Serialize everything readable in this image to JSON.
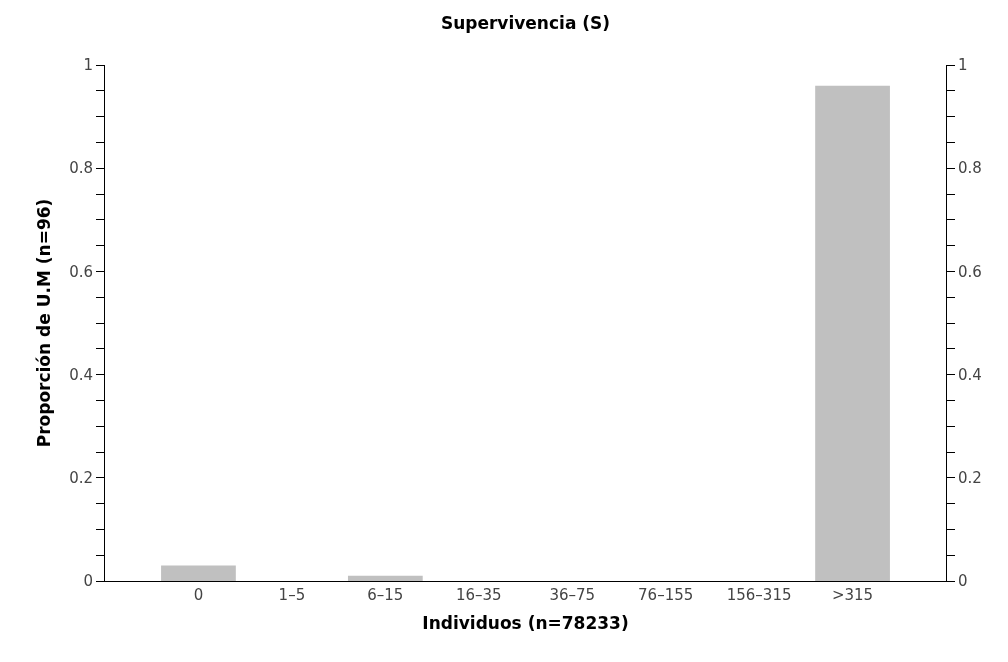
{
  "chart_data": {
    "type": "bar",
    "title": "Supervivencia (S)",
    "xlabel": "Individuos (n=78233)",
    "ylabel": "Proporción de U.M (n=96)",
    "categories": [
      "0",
      "1–5",
      "6–15",
      "16–35",
      "36–75",
      "76–155",
      "156–315",
      ">315"
    ],
    "values": [
      0.03,
      0,
      0.01,
      0,
      0,
      0,
      0,
      0.96
    ],
    "color": "#c0c0c0",
    "ylim": [
      0,
      1
    ],
    "yticks": [
      0,
      {
        "value": 0.05,
        "label": null
      },
      {
        "value": 0.1,
        "label": null
      },
      {
        "value": 0.15,
        "label": null
      },
      0.2,
      {
        "value": 0.25,
        "label": null
      },
      {
        "value": 0.3,
        "label": null
      },
      {
        "value": 0.35,
        "label": null
      },
      0.4,
      {
        "value": 0.45,
        "label": null
      },
      {
        "value": 0.5,
        "label": null
      },
      {
        "value": 0.55,
        "label": null
      },
      0.6,
      {
        "value": 0.65,
        "label": null
      },
      {
        "value": 0.7,
        "label": null
      },
      {
        "value": 0.75,
        "label": null
      },
      0.8,
      {
        "value": 0.85,
        "label": null
      },
      {
        "value": 0.9,
        "label": null
      },
      {
        "value": 0.95,
        "label": null
      },
      1
    ],
    "y2lim": [
      0,
      1
    ],
    "y2ticks": [
      0,
      {
        "value": 0.05,
        "label": null
      },
      {
        "value": 0.1,
        "label": null
      },
      {
        "value": 0.15,
        "label": null
      },
      0.2,
      {
        "value": 0.25,
        "label": null
      },
      {
        "value": 0.3,
        "label": null
      },
      {
        "value": 0.35,
        "label": null
      },
      0.4,
      {
        "value": 0.45,
        "label": null
      },
      {
        "value": 0.5,
        "label": null
      },
      {
        "value": 0.55,
        "label": null
      },
      0.6,
      {
        "value": 0.65,
        "label": null
      },
      {
        "value": 0.7,
        "label": null
      },
      {
        "value": 0.75,
        "label": null
      },
      0.8,
      {
        "value": 0.85,
        "label": null
      },
      {
        "value": 0.9,
        "label": null
      },
      {
        "value": 0.95,
        "label": null
      },
      1
    ],
    "grid": false
  }
}
